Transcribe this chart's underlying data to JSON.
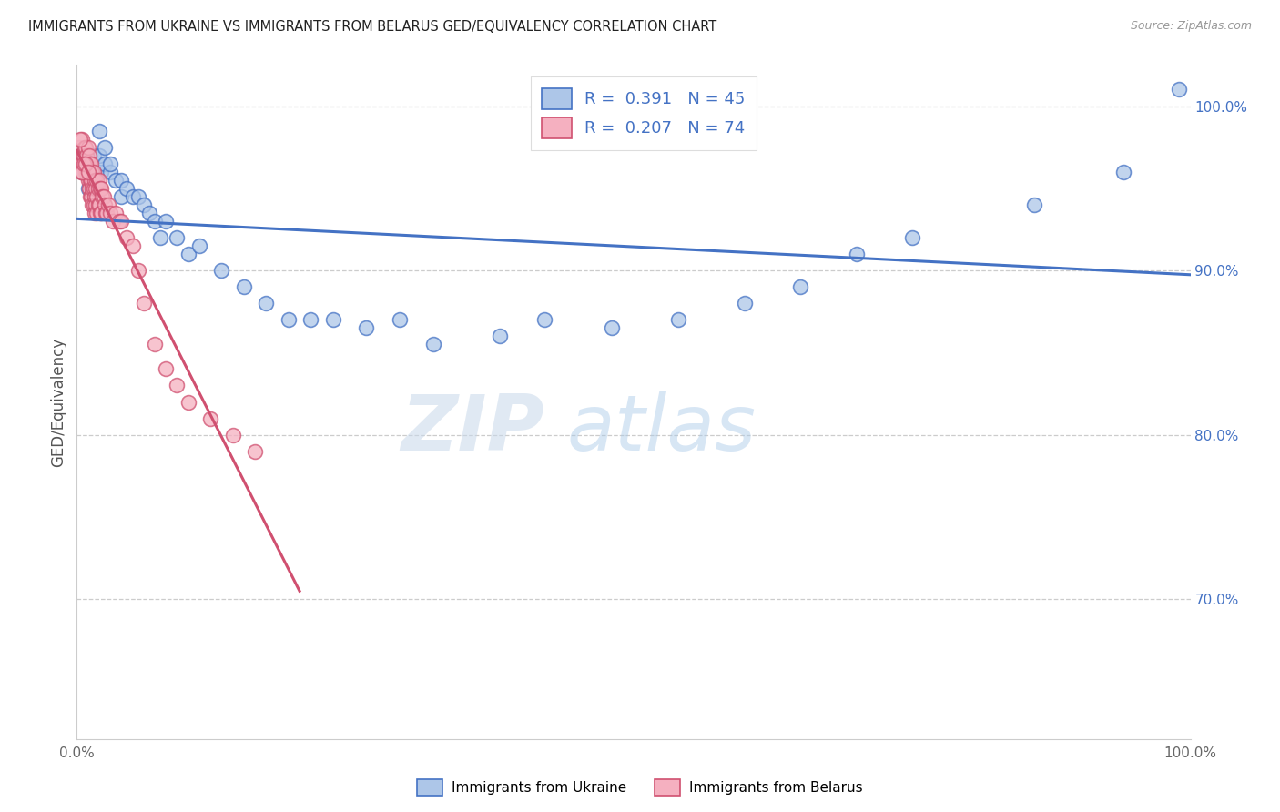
{
  "title": "IMMIGRANTS FROM UKRAINE VS IMMIGRANTS FROM BELARUS GED/EQUIVALENCY CORRELATION CHART",
  "source": "Source: ZipAtlas.com",
  "ylabel": "GED/Equivalency",
  "xlim": [
    0.0,
    1.0
  ],
  "ylim": [
    0.615,
    1.025
  ],
  "ytick_positions": [
    0.7,
    0.8,
    0.9,
    1.0
  ],
  "yticklabels": [
    "70.0%",
    "80.0%",
    "90.0%",
    "100.0%"
  ],
  "ukraine_R": 0.391,
  "ukraine_N": 45,
  "belarus_R": 0.207,
  "belarus_N": 74,
  "ukraine_color": "#adc6e8",
  "belarus_color": "#f5b0c0",
  "ukraine_line_color": "#4472c4",
  "belarus_line_color": "#d05070",
  "ukraine_scatter_x": [
    0.005,
    0.01,
    0.015,
    0.015,
    0.02,
    0.02,
    0.022,
    0.025,
    0.025,
    0.03,
    0.03,
    0.035,
    0.04,
    0.04,
    0.045,
    0.05,
    0.055,
    0.06,
    0.065,
    0.07,
    0.075,
    0.08,
    0.09,
    0.1,
    0.11,
    0.13,
    0.15,
    0.17,
    0.19,
    0.21,
    0.23,
    0.26,
    0.29,
    0.32,
    0.38,
    0.42,
    0.48,
    0.54,
    0.6,
    0.65,
    0.7,
    0.75,
    0.86,
    0.94,
    0.99
  ],
  "ukraine_scatter_y": [
    0.96,
    0.95,
    0.96,
    0.97,
    0.97,
    0.985,
    0.96,
    0.975,
    0.965,
    0.96,
    0.965,
    0.955,
    0.955,
    0.945,
    0.95,
    0.945,
    0.945,
    0.94,
    0.935,
    0.93,
    0.92,
    0.93,
    0.92,
    0.91,
    0.915,
    0.9,
    0.89,
    0.88,
    0.87,
    0.87,
    0.87,
    0.865,
    0.87,
    0.855,
    0.86,
    0.87,
    0.865,
    0.87,
    0.88,
    0.89,
    0.91,
    0.92,
    0.94,
    0.96,
    1.01
  ],
  "belarus_scatter_x": [
    0.002,
    0.003,
    0.004,
    0.005,
    0.005,
    0.006,
    0.007,
    0.007,
    0.008,
    0.008,
    0.009,
    0.009,
    0.01,
    0.01,
    0.01,
    0.011,
    0.011,
    0.011,
    0.012,
    0.012,
    0.012,
    0.013,
    0.013,
    0.013,
    0.014,
    0.014,
    0.014,
    0.015,
    0.015,
    0.015,
    0.016,
    0.016,
    0.016,
    0.017,
    0.017,
    0.018,
    0.018,
    0.018,
    0.019,
    0.019,
    0.02,
    0.02,
    0.021,
    0.021,
    0.022,
    0.022,
    0.023,
    0.024,
    0.025,
    0.026,
    0.027,
    0.028,
    0.03,
    0.032,
    0.035,
    0.038,
    0.04,
    0.045,
    0.05,
    0.055,
    0.06,
    0.07,
    0.08,
    0.09,
    0.1,
    0.12,
    0.14,
    0.16,
    0.003,
    0.004,
    0.005,
    0.006,
    0.008,
    0.01
  ],
  "belarus_scatter_y": [
    0.975,
    0.97,
    0.965,
    0.98,
    0.965,
    0.97,
    0.965,
    0.975,
    0.975,
    0.96,
    0.97,
    0.96,
    0.975,
    0.965,
    0.955,
    0.97,
    0.96,
    0.95,
    0.965,
    0.955,
    0.945,
    0.965,
    0.955,
    0.945,
    0.96,
    0.95,
    0.94,
    0.96,
    0.95,
    0.94,
    0.955,
    0.945,
    0.935,
    0.95,
    0.94,
    0.955,
    0.945,
    0.935,
    0.95,
    0.94,
    0.955,
    0.94,
    0.95,
    0.935,
    0.95,
    0.935,
    0.945,
    0.945,
    0.94,
    0.935,
    0.935,
    0.94,
    0.935,
    0.93,
    0.935,
    0.93,
    0.93,
    0.92,
    0.915,
    0.9,
    0.88,
    0.855,
    0.84,
    0.83,
    0.82,
    0.81,
    0.8,
    0.79,
    0.98,
    0.96,
    0.96,
    0.965,
    0.965,
    0.96
  ],
  "watermark_zip": "ZIP",
  "watermark_atlas": "atlas",
  "grid_color": "#cccccc",
  "background_color": "#ffffff",
  "right_tick_color": "#4472c4"
}
